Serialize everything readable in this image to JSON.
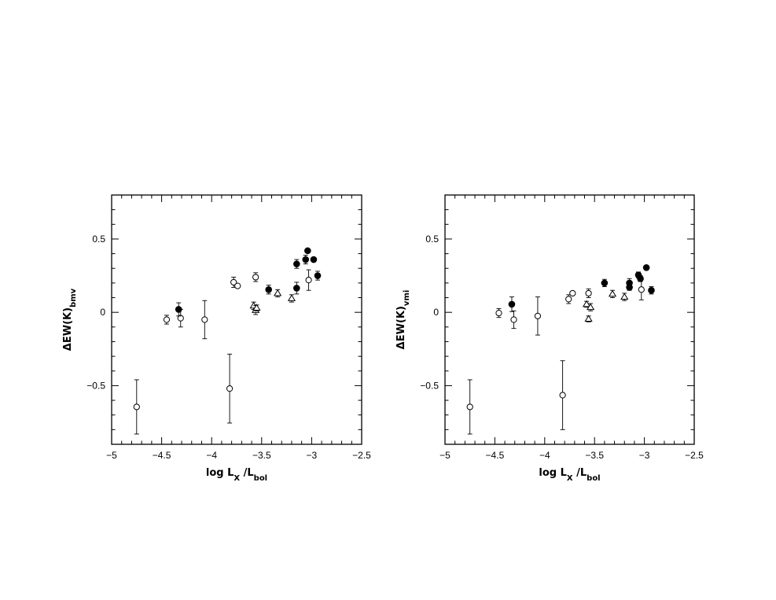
{
  "chart_data": [
    {
      "type": "scatter",
      "xlabel": {
        "main": "log  L",
        "sub1": "X",
        "mid": " /L",
        "sub2": "bol"
      },
      "ylabel": {
        "main": "ΔEW(K)",
        "sub": "bmv"
      },
      "xlim": [
        -5,
        -2.5
      ],
      "ylim": [
        -0.9,
        0.8
      ],
      "xticks": [
        -5,
        -4.5,
        -4,
        -3.5,
        -3,
        -2.5
      ],
      "xtick_labels": [
        "−5",
        "−4.5",
        "−4",
        "−3.5",
        "−3",
        "−2.5"
      ],
      "yticks": [
        -0.5,
        0,
        0.5
      ],
      "ytick_labels": [
        "−0.5",
        "0",
        "0.5"
      ],
      "grid": false,
      "series": [
        {
          "marker": "open-circle",
          "points": [
            {
              "x": -4.75,
              "y": -0.645,
              "err": 0.185
            },
            {
              "x": -4.45,
              "y": -0.05,
              "err": 0.03
            },
            {
              "x": -4.31,
              "y": -0.04,
              "err": 0.06
            },
            {
              "x": -4.07,
              "y": -0.05,
              "err": 0.13
            },
            {
              "x": -3.82,
              "y": -0.52,
              "err": 0.235
            },
            {
              "x": -3.78,
              "y": 0.205,
              "err": 0.035
            },
            {
              "x": -3.74,
              "y": 0.18,
              "err": 0.0
            },
            {
              "x": -3.56,
              "y": 0.24,
              "err": 0.03
            },
            {
              "x": -3.03,
              "y": 0.22,
              "err": 0.07
            }
          ]
        },
        {
          "marker": "filled-circle",
          "points": [
            {
              "x": -4.33,
              "y": 0.02,
              "err": 0.045
            },
            {
              "x": -3.43,
              "y": 0.155,
              "err": 0.03
            },
            {
              "x": -3.15,
              "y": 0.33,
              "err": 0.03
            },
            {
              "x": -3.15,
              "y": 0.165,
              "err": 0.04
            },
            {
              "x": -3.06,
              "y": 0.36,
              "err": 0.03
            },
            {
              "x": -3.04,
              "y": 0.42,
              "err": 0.0
            },
            {
              "x": -2.98,
              "y": 0.36,
              "err": 0.0
            },
            {
              "x": -2.94,
              "y": 0.25,
              "err": 0.03
            }
          ]
        },
        {
          "marker": "open-triangle",
          "points": [
            {
              "x": -3.58,
              "y": 0.045,
              "err": 0.025
            },
            {
              "x": -3.56,
              "y": 0.015,
              "err": 0.03
            },
            {
              "x": -3.55,
              "y": 0.03,
              "err": 0.02
            },
            {
              "x": -3.34,
              "y": 0.13,
              "err": 0.025
            },
            {
              "x": -3.2,
              "y": 0.095,
              "err": 0.025
            }
          ]
        }
      ]
    },
    {
      "type": "scatter",
      "xlabel": {
        "main": "log  L",
        "sub1": "X",
        "mid": " /L",
        "sub2": "bol"
      },
      "ylabel": {
        "main": "ΔEW(K)",
        "sub": "vmi"
      },
      "xlim": [
        -5,
        -2.5
      ],
      "ylim": [
        -0.9,
        0.8
      ],
      "xticks": [
        -5,
        -4.5,
        -4,
        -3.5,
        -3,
        -2.5
      ],
      "xtick_labels": [
        "−5",
        "−4.5",
        "−4",
        "−3.5",
        "−3",
        "−2.5"
      ],
      "yticks": [
        -0.5,
        0,
        0.5
      ],
      "ytick_labels": [
        "−0.5",
        "0",
        "0.5"
      ],
      "grid": false,
      "series": [
        {
          "marker": "open-circle",
          "points": [
            {
              "x": -4.75,
              "y": -0.645,
              "err": 0.185
            },
            {
              "x": -4.46,
              "y": -0.005,
              "err": 0.03
            },
            {
              "x": -4.31,
              "y": -0.05,
              "err": 0.06
            },
            {
              "x": -4.07,
              "y": -0.025,
              "err": 0.13
            },
            {
              "x": -3.82,
              "y": -0.565,
              "err": 0.235
            },
            {
              "x": -3.76,
              "y": 0.09,
              "err": 0.03
            },
            {
              "x": -3.72,
              "y": 0.13,
              "err": 0.0
            },
            {
              "x": -3.56,
              "y": 0.13,
              "err": 0.03
            },
            {
              "x": -3.03,
              "y": 0.155,
              "err": 0.07
            }
          ]
        },
        {
          "marker": "filled-circle",
          "points": [
            {
              "x": -4.33,
              "y": 0.055,
              "err": 0.05
            },
            {
              "x": -3.4,
              "y": 0.2,
              "err": 0.025
            },
            {
              "x": -3.15,
              "y": 0.2,
              "err": 0.03
            },
            {
              "x": -3.15,
              "y": 0.17,
              "err": 0.02
            },
            {
              "x": -3.06,
              "y": 0.255,
              "err": 0.02
            },
            {
              "x": -3.04,
              "y": 0.23,
              "err": 0.02
            },
            {
              "x": -2.98,
              "y": 0.305,
              "err": 0.0
            },
            {
              "x": -2.93,
              "y": 0.15,
              "err": 0.025
            }
          ]
        },
        {
          "marker": "open-triangle",
          "points": [
            {
              "x": -3.58,
              "y": 0.055,
              "err": 0.02
            },
            {
              "x": -3.56,
              "y": -0.045,
              "err": 0.02
            },
            {
              "x": -3.54,
              "y": 0.035,
              "err": 0.025
            },
            {
              "x": -3.32,
              "y": 0.125,
              "err": 0.025
            },
            {
              "x": -3.2,
              "y": 0.105,
              "err": 0.025
            }
          ]
        }
      ]
    }
  ]
}
